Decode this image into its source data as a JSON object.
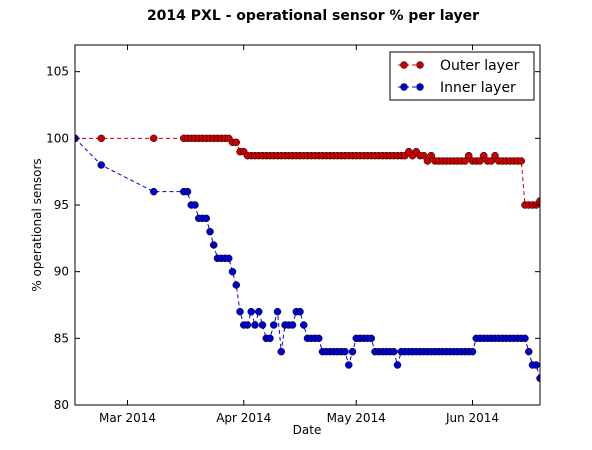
{
  "chart_data": {
    "type": "line",
    "title": "2014 PXL - operational sensor % per layer",
    "xlabel": "Date",
    "ylabel": "% operational sensors",
    "xlim": [
      "2014-02-15",
      "2014-06-19"
    ],
    "ylim": [
      80,
      107
    ],
    "x_ticks": [
      {
        "date": "2014-03-01",
        "label": "Mar 2014"
      },
      {
        "date": "2014-04-01",
        "label": "Apr 2014"
      },
      {
        "date": "2014-05-01",
        "label": "May 2014"
      },
      {
        "date": "2014-06-01",
        "label": "Jun 2014"
      }
    ],
    "y_ticks": [
      80,
      85,
      90,
      95,
      100,
      105
    ],
    "grid": false,
    "legend": "top-right",
    "series": [
      {
        "name": "Outer layer",
        "color": "#cc0000",
        "line_style": "dashed",
        "marker": "circle",
        "points": [
          [
            "2014-02-15",
            100
          ],
          [
            "2014-02-22",
            100
          ],
          [
            "2014-03-08",
            100
          ],
          [
            "2014-03-16",
            100
          ],
          [
            "2014-03-17",
            100
          ],
          [
            "2014-03-18",
            100
          ],
          [
            "2014-03-19",
            100
          ],
          [
            "2014-03-20",
            100
          ],
          [
            "2014-03-21",
            100
          ],
          [
            "2014-03-22",
            100
          ],
          [
            "2014-03-23",
            100
          ],
          [
            "2014-03-24",
            100
          ],
          [
            "2014-03-25",
            100
          ],
          [
            "2014-03-26",
            100
          ],
          [
            "2014-03-27",
            100
          ],
          [
            "2014-03-28",
            100
          ],
          [
            "2014-03-29",
            99.7
          ],
          [
            "2014-03-30",
            99.7
          ],
          [
            "2014-03-31",
            99
          ],
          [
            "2014-04-01",
            99
          ],
          [
            "2014-04-02",
            98.7
          ],
          [
            "2014-04-03",
            98.7
          ],
          [
            "2014-04-04",
            98.7
          ],
          [
            "2014-04-05",
            98.7
          ],
          [
            "2014-04-06",
            98.7
          ],
          [
            "2014-04-07",
            98.7
          ],
          [
            "2014-04-08",
            98.7
          ],
          [
            "2014-04-09",
            98.7
          ],
          [
            "2014-04-10",
            98.7
          ],
          [
            "2014-04-11",
            98.7
          ],
          [
            "2014-04-12",
            98.7
          ],
          [
            "2014-04-13",
            98.7
          ],
          [
            "2014-04-14",
            98.7
          ],
          [
            "2014-04-15",
            98.7
          ],
          [
            "2014-04-16",
            98.7
          ],
          [
            "2014-04-17",
            98.7
          ],
          [
            "2014-04-18",
            98.7
          ],
          [
            "2014-04-19",
            98.7
          ],
          [
            "2014-04-20",
            98.7
          ],
          [
            "2014-04-21",
            98.7
          ],
          [
            "2014-04-22",
            98.7
          ],
          [
            "2014-04-23",
            98.7
          ],
          [
            "2014-04-24",
            98.7
          ],
          [
            "2014-04-25",
            98.7
          ],
          [
            "2014-04-26",
            98.7
          ],
          [
            "2014-04-27",
            98.7
          ],
          [
            "2014-04-28",
            98.7
          ],
          [
            "2014-04-29",
            98.7
          ],
          [
            "2014-04-30",
            98.7
          ],
          [
            "2014-05-01",
            98.7
          ],
          [
            "2014-05-02",
            98.7
          ],
          [
            "2014-05-03",
            98.7
          ],
          [
            "2014-05-04",
            98.7
          ],
          [
            "2014-05-05",
            98.7
          ],
          [
            "2014-05-06",
            98.7
          ],
          [
            "2014-05-07",
            98.7
          ],
          [
            "2014-05-08",
            98.7
          ],
          [
            "2014-05-09",
            98.7
          ],
          [
            "2014-05-10",
            98.7
          ],
          [
            "2014-05-11",
            98.7
          ],
          [
            "2014-05-12",
            98.7
          ],
          [
            "2014-05-13",
            98.7
          ],
          [
            "2014-05-14",
            98.7
          ],
          [
            "2014-05-15",
            99
          ],
          [
            "2014-05-16",
            98.7
          ],
          [
            "2014-05-17",
            99
          ],
          [
            "2014-05-18",
            98.7
          ],
          [
            "2014-05-19",
            98.7
          ],
          [
            "2014-05-20",
            98.3
          ],
          [
            "2014-05-21",
            98.7
          ],
          [
            "2014-05-22",
            98.3
          ],
          [
            "2014-05-23",
            98.3
          ],
          [
            "2014-05-24",
            98.3
          ],
          [
            "2014-05-25",
            98.3
          ],
          [
            "2014-05-26",
            98.3
          ],
          [
            "2014-05-27",
            98.3
          ],
          [
            "2014-05-28",
            98.3
          ],
          [
            "2014-05-29",
            98.3
          ],
          [
            "2014-05-30",
            98.3
          ],
          [
            "2014-05-31",
            98.7
          ],
          [
            "2014-06-01",
            98.3
          ],
          [
            "2014-06-02",
            98.3
          ],
          [
            "2014-06-03",
            98.3
          ],
          [
            "2014-06-04",
            98.7
          ],
          [
            "2014-06-05",
            98.3
          ],
          [
            "2014-06-06",
            98.3
          ],
          [
            "2014-06-07",
            98.7
          ],
          [
            "2014-06-08",
            98.3
          ],
          [
            "2014-06-09",
            98.3
          ],
          [
            "2014-06-10",
            98.3
          ],
          [
            "2014-06-11",
            98.3
          ],
          [
            "2014-06-12",
            98.3
          ],
          [
            "2014-06-13",
            98.3
          ],
          [
            "2014-06-14",
            98.3
          ],
          [
            "2014-06-15",
            95
          ],
          [
            "2014-06-16",
            95
          ],
          [
            "2014-06-17",
            95
          ],
          [
            "2014-06-18",
            95
          ],
          [
            "2014-06-19",
            95.3
          ]
        ]
      },
      {
        "name": "Inner layer",
        "color": "#0000cc",
        "line_style": "dashed",
        "marker": "circle",
        "points": [
          [
            "2014-02-15",
            100
          ],
          [
            "2014-02-22",
            98
          ],
          [
            "2014-03-08",
            96
          ],
          [
            "2014-03-16",
            96
          ],
          [
            "2014-03-17",
            96
          ],
          [
            "2014-03-18",
            95
          ],
          [
            "2014-03-19",
            95
          ],
          [
            "2014-03-20",
            94
          ],
          [
            "2014-03-21",
            94
          ],
          [
            "2014-03-22",
            94
          ],
          [
            "2014-03-23",
            93
          ],
          [
            "2014-03-24",
            92
          ],
          [
            "2014-03-25",
            91
          ],
          [
            "2014-03-26",
            91
          ],
          [
            "2014-03-27",
            91
          ],
          [
            "2014-03-28",
            91
          ],
          [
            "2014-03-29",
            90
          ],
          [
            "2014-03-30",
            89
          ],
          [
            "2014-03-31",
            87
          ],
          [
            "2014-04-01",
            86
          ],
          [
            "2014-04-02",
            86
          ],
          [
            "2014-04-03",
            87
          ],
          [
            "2014-04-04",
            86
          ],
          [
            "2014-04-05",
            87
          ],
          [
            "2014-04-06",
            86
          ],
          [
            "2014-04-07",
            85
          ],
          [
            "2014-04-08",
            85
          ],
          [
            "2014-04-09",
            86
          ],
          [
            "2014-04-10",
            87
          ],
          [
            "2014-04-11",
            84
          ],
          [
            "2014-04-12",
            86
          ],
          [
            "2014-04-13",
            86
          ],
          [
            "2014-04-14",
            86
          ],
          [
            "2014-04-15",
            87
          ],
          [
            "2014-04-16",
            87
          ],
          [
            "2014-04-17",
            86
          ],
          [
            "2014-04-18",
            85
          ],
          [
            "2014-04-19",
            85
          ],
          [
            "2014-04-20",
            85
          ],
          [
            "2014-04-21",
            85
          ],
          [
            "2014-04-22",
            84
          ],
          [
            "2014-04-23",
            84
          ],
          [
            "2014-04-24",
            84
          ],
          [
            "2014-04-25",
            84
          ],
          [
            "2014-04-26",
            84
          ],
          [
            "2014-04-27",
            84
          ],
          [
            "2014-04-28",
            84
          ],
          [
            "2014-04-29",
            83
          ],
          [
            "2014-04-30",
            84
          ],
          [
            "2014-05-01",
            85
          ],
          [
            "2014-05-02",
            85
          ],
          [
            "2014-05-03",
            85
          ],
          [
            "2014-05-04",
            85
          ],
          [
            "2014-05-05",
            85
          ],
          [
            "2014-05-06",
            84
          ],
          [
            "2014-05-07",
            84
          ],
          [
            "2014-05-08",
            84
          ],
          [
            "2014-05-09",
            84
          ],
          [
            "2014-05-10",
            84
          ],
          [
            "2014-05-11",
            84
          ],
          [
            "2014-05-12",
            83
          ],
          [
            "2014-05-13",
            84
          ],
          [
            "2014-05-14",
            84
          ],
          [
            "2014-05-15",
            84
          ],
          [
            "2014-05-16",
            84
          ],
          [
            "2014-05-17",
            84
          ],
          [
            "2014-05-18",
            84
          ],
          [
            "2014-05-19",
            84
          ],
          [
            "2014-05-20",
            84
          ],
          [
            "2014-05-21",
            84
          ],
          [
            "2014-05-22",
            84
          ],
          [
            "2014-05-23",
            84
          ],
          [
            "2014-05-24",
            84
          ],
          [
            "2014-05-25",
            84
          ],
          [
            "2014-05-26",
            84
          ],
          [
            "2014-05-27",
            84
          ],
          [
            "2014-05-28",
            84
          ],
          [
            "2014-05-29",
            84
          ],
          [
            "2014-05-30",
            84
          ],
          [
            "2014-05-31",
            84
          ],
          [
            "2014-06-01",
            84
          ],
          [
            "2014-06-02",
            85
          ],
          [
            "2014-06-03",
            85
          ],
          [
            "2014-06-04",
            85
          ],
          [
            "2014-06-05",
            85
          ],
          [
            "2014-06-06",
            85
          ],
          [
            "2014-06-07",
            85
          ],
          [
            "2014-06-08",
            85
          ],
          [
            "2014-06-09",
            85
          ],
          [
            "2014-06-10",
            85
          ],
          [
            "2014-06-11",
            85
          ],
          [
            "2014-06-12",
            85
          ],
          [
            "2014-06-13",
            85
          ],
          [
            "2014-06-14",
            85
          ],
          [
            "2014-06-15",
            85
          ],
          [
            "2014-06-16",
            84
          ],
          [
            "2014-06-17",
            83
          ],
          [
            "2014-06-18",
            83
          ],
          [
            "2014-06-19",
            82
          ]
        ]
      }
    ]
  }
}
